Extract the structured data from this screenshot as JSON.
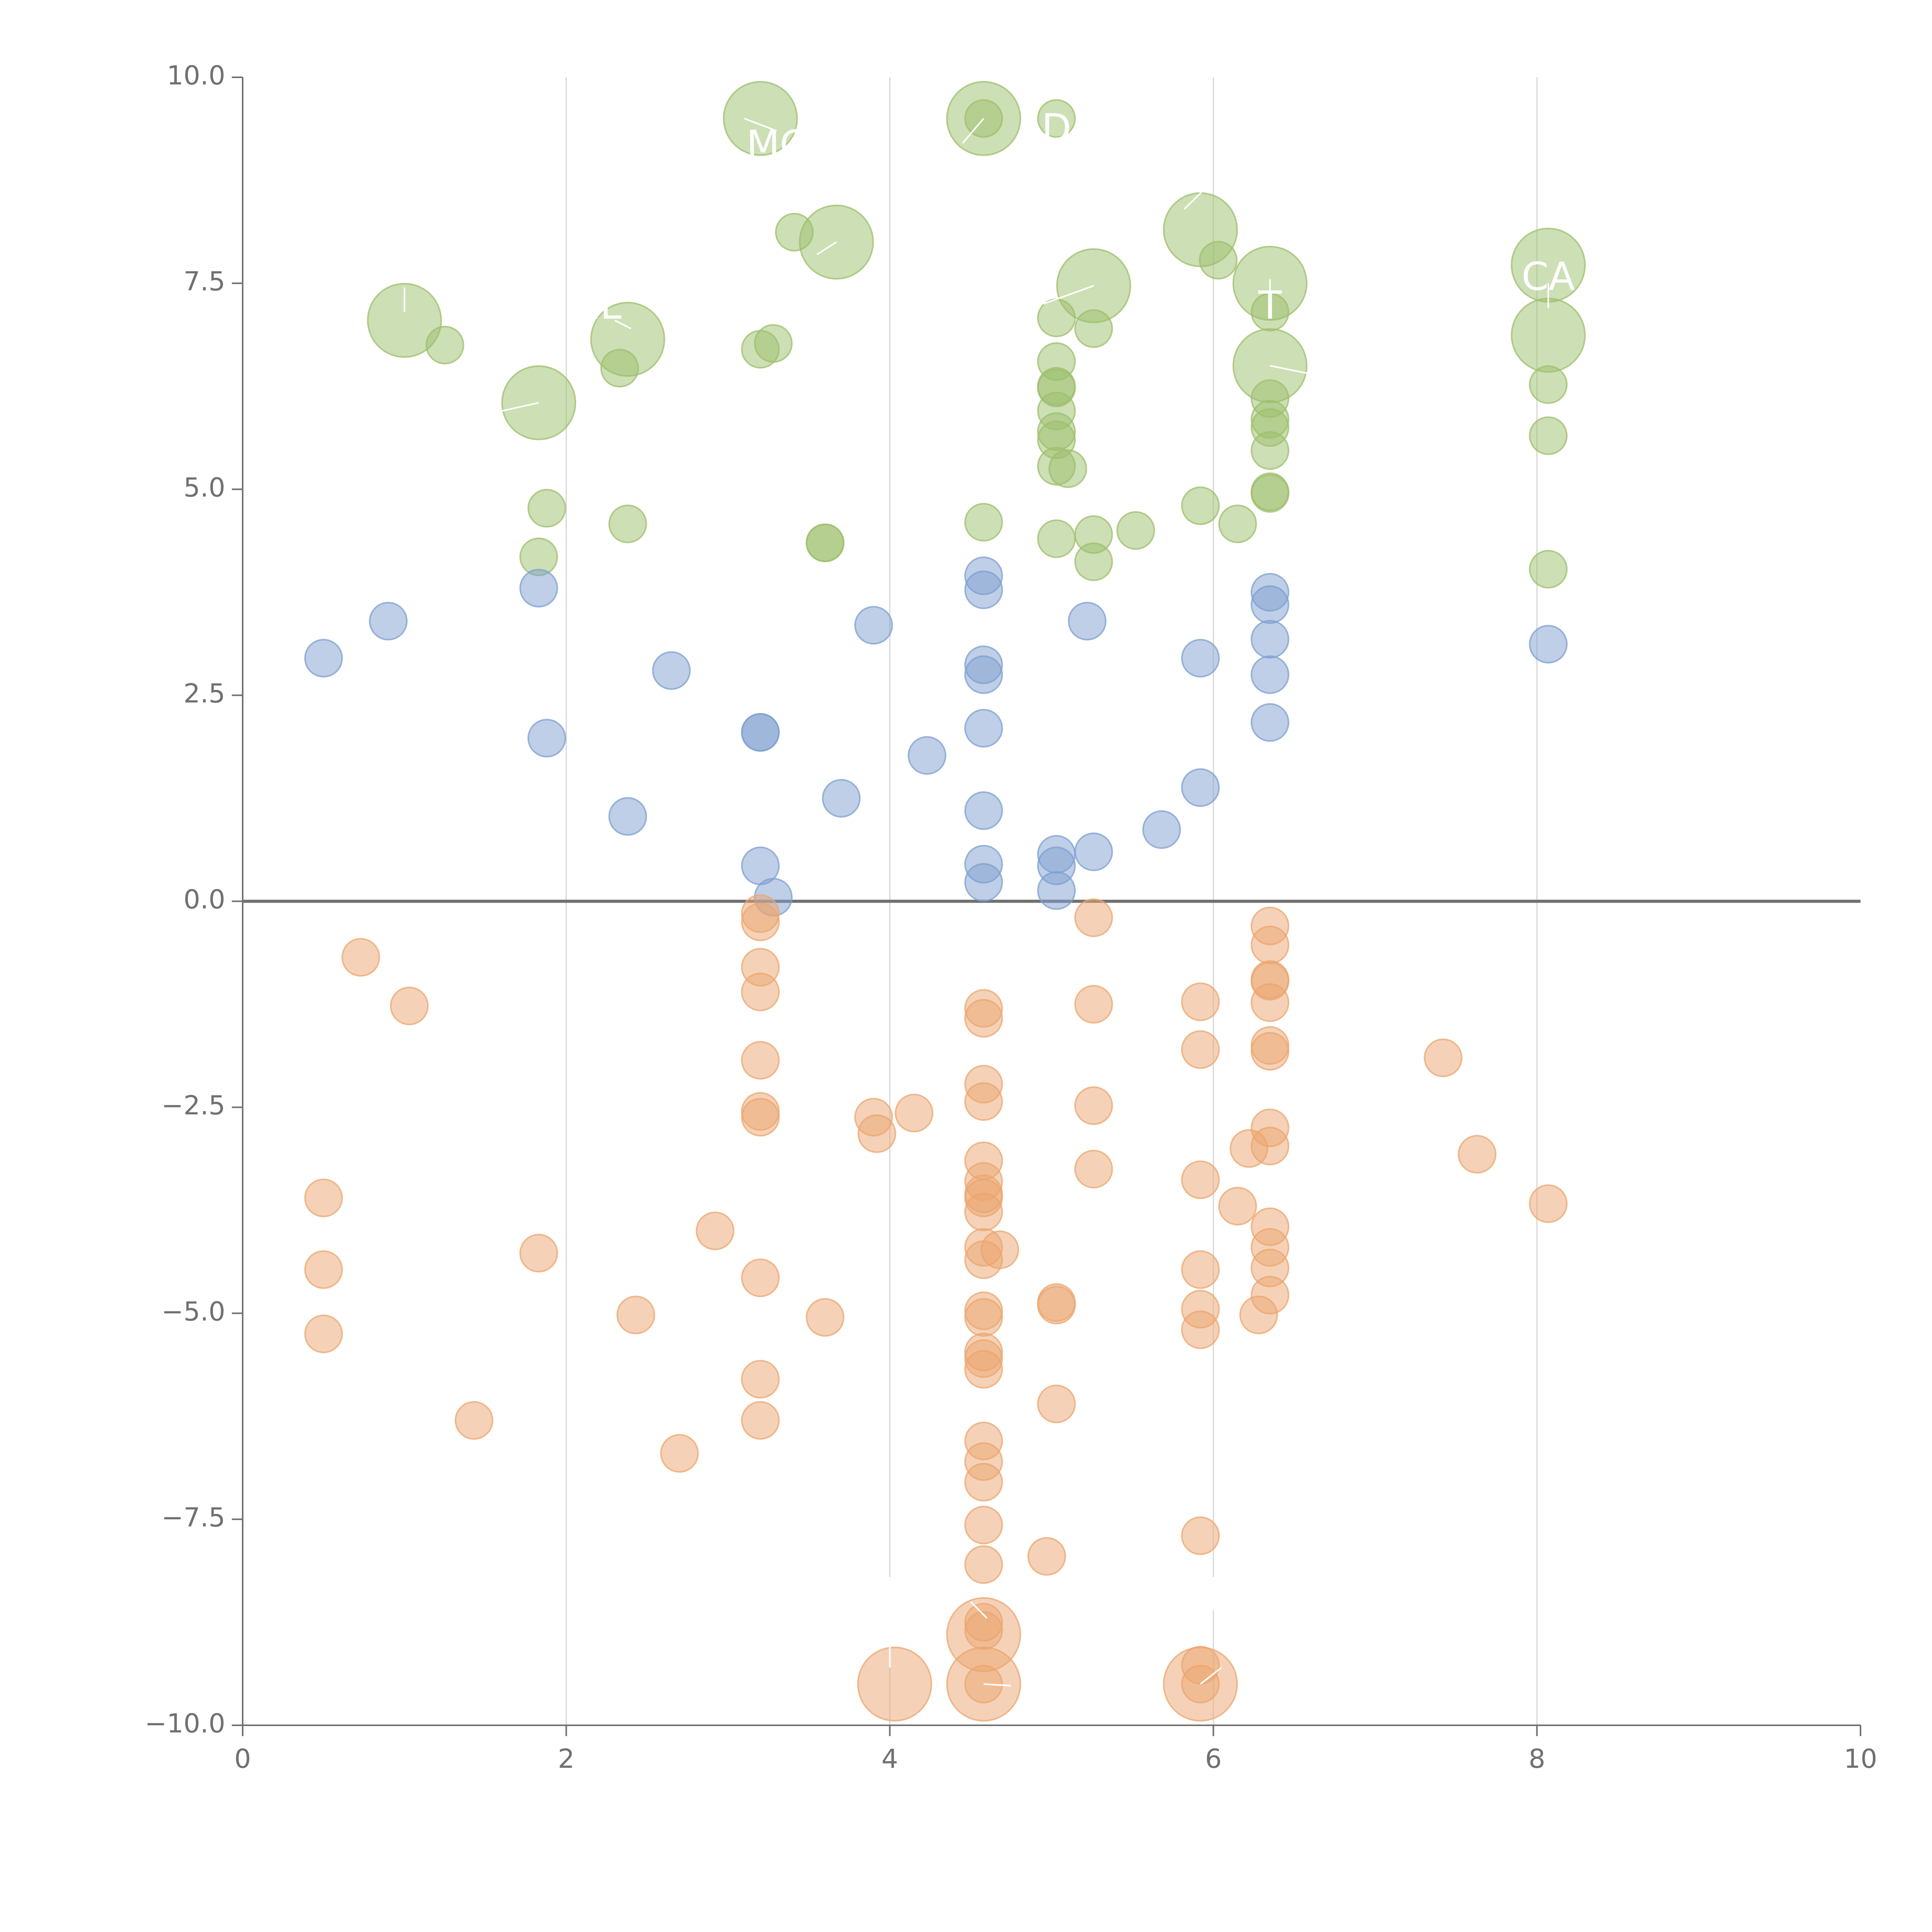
{
  "chart_data": {
    "type": "scatter",
    "title": "",
    "xlabel": "",
    "ylabel": "",
    "xlim": [
      0,
      10
    ],
    "ylim": [
      -10,
      10
    ],
    "x_ticks": [
      0,
      2,
      4,
      6,
      8,
      10
    ],
    "x_tick_labels": [
      "0",
      "2",
      "4",
      "6",
      "8",
      "10"
    ],
    "y_ticks": [
      10,
      7.5,
      5,
      2.5,
      0,
      -2.5,
      -5,
      -7.5,
      -10
    ],
    "y_tick_labels": [
      "10.0",
      "7.5",
      "5.0",
      "2.5",
      "0.0",
      "−2.5",
      "−5.0",
      "−7.5",
      "−10.0"
    ],
    "vertical_gridlines": [
      2,
      4,
      6,
      8
    ],
    "reference_line_y": 0,
    "grid": "vertical only",
    "legend": "none",
    "series": [
      {
        "color": "#9cbf6b",
        "points": [
          [
            3.2,
            9.5,
            2
          ],
          [
            4.58,
            9.5,
            2
          ],
          [
            4.58,
            9.5,
            1
          ],
          [
            5.03,
            9.5,
            1
          ],
          [
            3.41,
            8.12,
            1
          ],
          [
            3.67,
            8.0,
            2
          ],
          [
            5.92,
            8.15,
            2
          ],
          [
            6.03,
            7.78,
            1
          ],
          [
            8.07,
            7.72,
            2
          ],
          [
            6.35,
            7.5,
            2
          ],
          [
            5.26,
            7.47,
            2
          ],
          [
            1.0,
            7.05,
            2
          ],
          [
            1.25,
            6.75,
            1
          ],
          [
            2.38,
            6.82,
            2
          ],
          [
            3.2,
            6.7,
            1
          ],
          [
            3.28,
            6.77,
            1
          ],
          [
            2.33,
            6.47,
            1
          ],
          [
            5.03,
            7.08,
            1
          ],
          [
            5.26,
            6.95,
            1
          ],
          [
            6.35,
            7.15,
            1
          ],
          [
            8.07,
            6.87,
            2
          ],
          [
            6.35,
            6.5,
            2
          ],
          [
            1.83,
            6.05,
            2
          ],
          [
            5.03,
            6.55,
            1
          ],
          [
            5.03,
            6.25,
            1
          ],
          [
            5.03,
            6.23,
            1
          ],
          [
            5.03,
            5.95,
            1
          ],
          [
            6.35,
            6.1,
            1
          ],
          [
            6.35,
            5.85,
            1
          ],
          [
            6.35,
            5.75,
            1
          ],
          [
            8.07,
            6.27,
            1
          ],
          [
            5.03,
            5.7,
            1
          ],
          [
            5.03,
            5.6,
            1
          ],
          [
            5.03,
            5.28,
            1
          ],
          [
            5.1,
            5.25,
            1
          ],
          [
            6.35,
            5.47,
            1
          ],
          [
            8.07,
            5.65,
            1
          ],
          [
            6.35,
            4.97,
            1
          ],
          [
            6.35,
            4.95,
            1
          ],
          [
            1.88,
            4.77,
            1
          ],
          [
            2.38,
            4.58,
            1
          ],
          [
            4.58,
            4.6,
            1
          ],
          [
            5.92,
            4.8,
            1
          ],
          [
            6.15,
            4.58,
            1
          ],
          [
            5.52,
            4.5,
            1
          ],
          [
            5.26,
            4.45,
            1
          ],
          [
            5.03,
            4.4,
            1
          ],
          [
            3.6,
            4.35,
            1
          ],
          [
            3.6,
            4.35,
            1
          ],
          [
            5.26,
            4.12,
            1
          ],
          [
            1.83,
            4.18,
            1
          ],
          [
            8.07,
            4.03,
            1
          ]
        ]
      },
      {
        "color": "#7e9fd0",
        "points": [
          [
            0.5,
            2.95,
            1
          ],
          [
            0.9,
            3.4,
            1
          ],
          [
            1.83,
            3.8,
            1
          ],
          [
            1.88,
            1.98,
            1
          ],
          [
            2.38,
            1.03,
            1
          ],
          [
            2.65,
            2.8,
            1
          ],
          [
            3.2,
            2.05,
            1
          ],
          [
            3.2,
            2.05,
            1
          ],
          [
            3.2,
            0.43,
            1
          ],
          [
            3.28,
            0.05,
            1
          ],
          [
            3.7,
            1.25,
            1
          ],
          [
            3.9,
            3.35,
            1
          ],
          [
            4.23,
            1.77,
            1
          ],
          [
            4.58,
            3.95,
            1
          ],
          [
            4.58,
            3.78,
            1
          ],
          [
            4.58,
            2.87,
            1
          ],
          [
            4.58,
            2.75,
            1
          ],
          [
            4.58,
            2.1,
            1
          ],
          [
            4.58,
            1.1,
            1
          ],
          [
            4.58,
            0.45,
            1
          ],
          [
            4.58,
            0.23,
            1
          ],
          [
            5.03,
            0.57,
            1
          ],
          [
            5.03,
            0.43,
            1
          ],
          [
            5.03,
            0.13,
            1
          ],
          [
            5.22,
            3.4,
            1
          ],
          [
            5.26,
            0.6,
            1
          ],
          [
            5.68,
            0.87,
            1
          ],
          [
            5.92,
            2.95,
            1
          ],
          [
            5.92,
            1.38,
            1
          ],
          [
            6.35,
            3.75,
            1
          ],
          [
            6.35,
            3.6,
            1
          ],
          [
            6.35,
            3.18,
            1
          ],
          [
            6.35,
            2.75,
            1
          ],
          [
            6.35,
            2.17,
            1
          ],
          [
            8.07,
            3.12,
            1
          ]
        ]
      },
      {
        "color": "#eba56f",
        "points": [
          [
            0.73,
            -0.68,
            1
          ],
          [
            1.03,
            -1.27,
            1
          ],
          [
            0.5,
            -3.6,
            1
          ],
          [
            0.5,
            -4.47,
            1
          ],
          [
            0.5,
            -5.25,
            1
          ],
          [
            1.43,
            -6.3,
            1
          ],
          [
            1.83,
            -4.27,
            1
          ],
          [
            2.43,
            -5.02,
            1
          ],
          [
            2.7,
            -6.7,
            1
          ],
          [
            2.92,
            -4.0,
            1
          ],
          [
            3.2,
            -0.25,
            1
          ],
          [
            3.2,
            -0.15,
            1
          ],
          [
            3.2,
            -0.8,
            1
          ],
          [
            3.2,
            -1.1,
            1
          ],
          [
            3.2,
            -1.93,
            1
          ],
          [
            3.2,
            -2.55,
            1
          ],
          [
            3.2,
            -2.62,
            1
          ],
          [
            3.2,
            -4.57,
            1
          ],
          [
            3.2,
            -5.8,
            1
          ],
          [
            3.2,
            -6.3,
            1
          ],
          [
            3.6,
            -5.05,
            1
          ],
          [
            3.9,
            -2.62,
            1
          ],
          [
            3.92,
            -2.82,
            1
          ],
          [
            4.15,
            -2.57,
            1
          ],
          [
            4.03,
            -9.5,
            2
          ],
          [
            4.58,
            -1.3,
            1
          ],
          [
            4.58,
            -1.42,
            1
          ],
          [
            4.58,
            -2.22,
            1
          ],
          [
            4.58,
            -2.43,
            1
          ],
          [
            4.58,
            -3.15,
            1
          ],
          [
            4.58,
            -3.4,
            1
          ],
          [
            4.58,
            -3.55,
            1
          ],
          [
            4.58,
            -3.6,
            1
          ],
          [
            4.58,
            -3.77,
            1
          ],
          [
            4.58,
            -4.2,
            1
          ],
          [
            4.58,
            -4.35,
            1
          ],
          [
            4.68,
            -4.23,
            1
          ],
          [
            4.58,
            -4.97,
            1
          ],
          [
            4.58,
            -5.05,
            1
          ],
          [
            4.58,
            -5.47,
            1
          ],
          [
            4.58,
            -5.55,
            1
          ],
          [
            4.58,
            -5.68,
            1
          ],
          [
            4.58,
            -6.55,
            1
          ],
          [
            4.58,
            -6.8,
            1
          ],
          [
            4.58,
            -7.05,
            1
          ],
          [
            4.58,
            -7.57,
            1
          ],
          [
            4.58,
            -8.05,
            1
          ],
          [
            4.58,
            -8.75,
            1
          ],
          [
            4.58,
            -8.85,
            1
          ],
          [
            4.58,
            -8.9,
            2
          ],
          [
            4.58,
            -9.5,
            2
          ],
          [
            4.58,
            -9.5,
            1
          ],
          [
            4.97,
            -7.95,
            1
          ],
          [
            5.03,
            -4.87,
            1
          ],
          [
            5.03,
            -4.9,
            1
          ],
          [
            5.03,
            -6.1,
            1
          ],
          [
            5.26,
            -0.2,
            1
          ],
          [
            5.26,
            -1.25,
            1
          ],
          [
            5.26,
            -2.48,
            1
          ],
          [
            5.26,
            -3.25,
            1
          ],
          [
            5.92,
            -1.22,
            1
          ],
          [
            5.92,
            -1.8,
            1
          ],
          [
            5.92,
            -3.38,
            1
          ],
          [
            5.92,
            -4.47,
            1
          ],
          [
            5.92,
            -4.95,
            1
          ],
          [
            5.92,
            -5.2,
            1
          ],
          [
            5.92,
            -7.7,
            1
          ],
          [
            5.92,
            -9.27,
            1
          ],
          [
            5.92,
            -9.5,
            2
          ],
          [
            5.92,
            -9.5,
            1
          ],
          [
            6.15,
            -3.7,
            1
          ],
          [
            6.22,
            -3.0,
            1
          ],
          [
            6.28,
            -5.02,
            1
          ],
          [
            6.35,
            -0.3,
            1
          ],
          [
            6.35,
            -0.53,
            1
          ],
          [
            6.35,
            -0.95,
            1
          ],
          [
            6.35,
            -0.97,
            1
          ],
          [
            6.35,
            -1.23,
            1
          ],
          [
            6.35,
            -1.75,
            1
          ],
          [
            6.35,
            -1.82,
            1
          ],
          [
            6.35,
            -2.75,
            1
          ],
          [
            6.35,
            -2.97,
            1
          ],
          [
            6.35,
            -3.95,
            1
          ],
          [
            6.35,
            -4.2,
            1
          ],
          [
            6.35,
            -4.45,
            1
          ],
          [
            6.35,
            -4.78,
            1
          ],
          [
            7.42,
            -1.9,
            1
          ],
          [
            7.63,
            -3.07,
            1
          ],
          [
            8.07,
            -3.67,
            1
          ]
        ]
      }
    ],
    "annotations": [
      {
        "text": "MC",
        "x": 3.3,
        "y": 9.15,
        "line_from": [
          3.3,
          9.35
        ],
        "line_to": [
          3.1,
          9.5
        ]
      },
      {
        "text": "D",
        "x": 5.03,
        "y": 9.35,
        "line_from": [
          4.45,
          9.2
        ],
        "line_to": [
          4.58,
          9.5
        ]
      },
      {
        "text": "",
        "x": 5.9,
        "y": 8.5,
        "line_from": [
          5.95,
          8.65
        ],
        "line_to": [
          5.82,
          8.4
        ]
      },
      {
        "text": "CA",
        "x": 8.07,
        "y": 7.55,
        "line_from": [
          8.07,
          7.2
        ],
        "line_to": [
          8.07,
          7.5
        ]
      },
      {
        "text": "EL",
        "x": 2.2,
        "y": 7.2,
        "line_from": [
          2.3,
          7.05
        ],
        "line_to": [
          2.4,
          6.95
        ]
      },
      {
        "text": "T",
        "x": 6.35,
        "y": 7.2,
        "line_from": [
          6.35,
          7.55
        ],
        "line_to": [
          6.35,
          7.35
        ]
      },
      {
        "text": "",
        "x": 3.67,
        "y": 8.0,
        "line_from": [
          3.55,
          7.85
        ],
        "line_to": [
          3.67,
          8.0
        ]
      },
      {
        "text": "",
        "x": 1.0,
        "y": 7.5,
        "line_from": [
          1.0,
          7.45
        ],
        "line_to": [
          1.0,
          7.15
        ]
      },
      {
        "text": "",
        "x": 5.26,
        "y": 7.47,
        "line_from": [
          5.26,
          7.47
        ],
        "line_to": [
          4.95,
          7.25
        ]
      },
      {
        "text": "",
        "x": 1.83,
        "y": 6.05,
        "line_from": [
          1.83,
          6.05
        ],
        "line_to": [
          1.6,
          5.95
        ]
      },
      {
        "text": "",
        "x": 6.35,
        "y": 6.5,
        "line_from": [
          6.35,
          6.5
        ],
        "line_to": [
          6.6,
          6.4
        ]
      },
      {
        "text": "",
        "x": 4.0,
        "y": -8.9,
        "line_from": [
          4.0,
          -8.2
        ],
        "line_to": [
          4.0,
          -9.3
        ]
      },
      {
        "text": "",
        "x": 4.58,
        "y": -8.9,
        "line_from": [
          4.5,
          -8.5
        ],
        "line_to": [
          4.6,
          -8.7
        ]
      },
      {
        "text": "",
        "x": 4.58,
        "y": -9.5,
        "line_from": [
          4.58,
          -9.5
        ],
        "line_to": [
          4.75,
          -9.52
        ]
      },
      {
        "text": "",
        "x": 5.92,
        "y": -9.5,
        "line_from": [
          5.92,
          -9.5
        ],
        "line_to": [
          6.05,
          -9.3
        ]
      },
      {
        "text": "",
        "x": 6.0,
        "y": -8.5,
        "line_from": [
          6.0,
          -8.2
        ],
        "line_to": [
          6.0,
          -8.6
        ]
      }
    ]
  }
}
